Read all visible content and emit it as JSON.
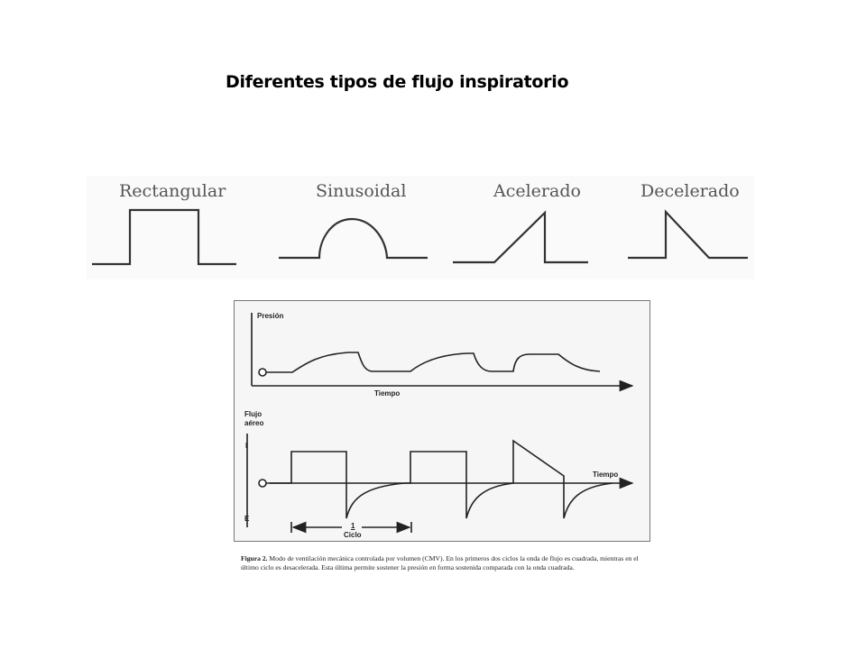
{
  "title": "Diferentes tipos de flujo inspiratorio",
  "waveforms": [
    {
      "label": "Rectangular",
      "shape": "rectangular"
    },
    {
      "label": "Sinusoidal",
      "shape": "sinusoidal"
    },
    {
      "label": "Acelerado",
      "shape": "accelerating"
    },
    {
      "label": "Decelerado",
      "shape": "decelerating"
    }
  ],
  "figure": {
    "pressure_label": "Presión",
    "time_label_top": "Tiempo",
    "flow_label_line1": "Flujo",
    "flow_label_line2": "aéreo",
    "inspiration_label": "I",
    "expiration_label": "E",
    "time_label_bottom": "Tiempo",
    "cycle_number": "1",
    "cycle_label": "Ciclo",
    "caption_bold": "Figura 2.",
    "caption_text": " Modo de ventilación mecánica controlada por volumen (CMV). En los primeros dos ciclos la onda de flujo es cuadrada, mientras en el último ciclo es desacelerada. Esta última permite sostener la presión en forma sostenida comparada con la onda cuadrada."
  },
  "colors": {
    "line": "#333333",
    "figure_line": "#222222",
    "label": "#555555"
  }
}
